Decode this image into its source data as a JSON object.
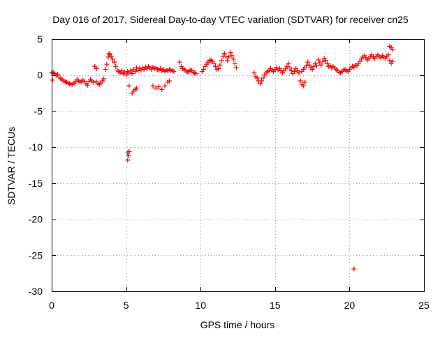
{
  "chart_data": {
    "type": "scatter",
    "title": "Day 016 of 2017, Sidereal Day-to-day VTEC variation (SDTVAR) for receiver cn25",
    "xlabel": "GPS time / hours",
    "ylabel": "SDTVAR / TECUs",
    "xlim": [
      0,
      25
    ],
    "ylim": [
      -30,
      5
    ],
    "xticks": [
      0,
      5,
      10,
      15,
      20,
      25
    ],
    "yticks": [
      5,
      0,
      -5,
      -10,
      -15,
      -20,
      -25,
      -30
    ],
    "grid": true,
    "marker": "+",
    "color": "#ff0000",
    "series": [
      {
        "name": "SDTVAR",
        "points": [
          [
            0.0,
            0.3
          ],
          [
            0.05,
            -0.7
          ],
          [
            0.1,
            0.4
          ],
          [
            0.2,
            0.2
          ],
          [
            0.3,
            0.0
          ],
          [
            0.4,
            0.1
          ],
          [
            0.5,
            -0.3
          ],
          [
            0.6,
            -0.5
          ],
          [
            0.7,
            -0.6
          ],
          [
            0.8,
            -0.8
          ],
          [
            0.9,
            -0.9
          ],
          [
            1.0,
            -1.0
          ],
          [
            1.1,
            -1.1
          ],
          [
            1.2,
            -1.2
          ],
          [
            1.3,
            -1.3
          ],
          [
            1.4,
            -1.3
          ],
          [
            1.5,
            -1.1
          ],
          [
            1.6,
            -0.9
          ],
          [
            1.7,
            -0.6
          ],
          [
            1.8,
            -0.8
          ],
          [
            1.9,
            -1.0
          ],
          [
            2.0,
            -0.9
          ],
          [
            2.1,
            -0.7
          ],
          [
            2.2,
            -0.9
          ],
          [
            2.3,
            -1.2
          ],
          [
            2.4,
            -1.4
          ],
          [
            2.5,
            -0.9
          ],
          [
            2.6,
            -0.6
          ],
          [
            2.7,
            -0.8
          ],
          [
            2.8,
            -1.0
          ],
          [
            2.9,
            1.2
          ],
          [
            3.0,
            0.9
          ],
          [
            3.0,
            -0.9
          ],
          [
            3.1,
            -1.2
          ],
          [
            3.2,
            -1.3
          ],
          [
            3.3,
            -1.1
          ],
          [
            3.4,
            -0.8
          ],
          [
            3.5,
            -0.5
          ],
          [
            3.6,
            0.8
          ],
          [
            3.7,
            1.5
          ],
          [
            3.8,
            2.5
          ],
          [
            3.85,
            3.0
          ],
          [
            3.9,
            2.8
          ],
          [
            4.0,
            2.6
          ],
          [
            4.1,
            2.2
          ],
          [
            4.2,
            1.8
          ],
          [
            4.3,
            1.2
          ],
          [
            4.4,
            0.7
          ],
          [
            4.5,
            0.5
          ],
          [
            4.6,
            0.3
          ],
          [
            4.7,
            0.6
          ],
          [
            4.8,
            0.2
          ],
          [
            4.9,
            0.4
          ],
          [
            5.0,
            0.1
          ],
          [
            5.1,
            0.5
          ],
          [
            5.2,
            0.3
          ],
          [
            5.3,
            0.6
          ],
          [
            5.4,
            0.2
          ],
          [
            5.5,
            0.8
          ],
          [
            5.6,
            0.5
          ],
          [
            5.7,
            1.0
          ],
          [
            5.8,
            0.6
          ],
          [
            5.9,
            0.9
          ],
          [
            6.0,
            0.7
          ],
          [
            6.1,
            1.0
          ],
          [
            6.2,
            0.8
          ],
          [
            6.3,
            1.1
          ],
          [
            6.4,
            0.9
          ],
          [
            6.5,
            1.2
          ],
          [
            6.6,
            1.0
          ],
          [
            6.7,
            0.8
          ],
          [
            6.8,
            1.1
          ],
          [
            6.9,
            0.9
          ],
          [
            7.0,
            1.0
          ],
          [
            7.1,
            0.8
          ],
          [
            7.2,
            0.7
          ],
          [
            7.3,
            0.9
          ],
          [
            7.4,
            0.6
          ],
          [
            7.5,
            0.8
          ],
          [
            7.6,
            0.5
          ],
          [
            7.7,
            0.7
          ],
          [
            7.8,
            0.6
          ],
          [
            7.9,
            0.8
          ],
          [
            8.0,
            0.7
          ],
          [
            8.1,
            0.6
          ],
          [
            8.2,
            0.5
          ],
          [
            5.2,
            -1.5
          ],
          [
            5.4,
            -2.5
          ],
          [
            5.5,
            -2.2
          ],
          [
            5.6,
            -2.0
          ],
          [
            5.7,
            -1.8
          ],
          [
            6.8,
            -1.5
          ],
          [
            7.0,
            -1.8
          ],
          [
            7.2,
            -1.6
          ],
          [
            7.4,
            -2.0
          ],
          [
            7.6,
            -1.5
          ],
          [
            7.8,
            -1.0
          ],
          [
            7.9,
            -0.8
          ],
          [
            5.1,
            -10.8
          ],
          [
            5.15,
            -11.2
          ],
          [
            5.2,
            -10.6
          ],
          [
            5.1,
            -11.8
          ],
          [
            8.6,
            1.8
          ],
          [
            8.7,
            1.2
          ],
          [
            8.8,
            0.9
          ],
          [
            8.9,
            0.8
          ],
          [
            9.0,
            0.6
          ],
          [
            9.1,
            0.4
          ],
          [
            9.2,
            0.5
          ],
          [
            9.3,
            0.7
          ],
          [
            9.4,
            0.6
          ],
          [
            9.5,
            0.4
          ],
          [
            9.6,
            0.3
          ],
          [
            9.7,
            0.2
          ],
          [
            10.1,
            0.5
          ],
          [
            10.2,
            0.8
          ],
          [
            10.3,
            1.2
          ],
          [
            10.4,
            1.5
          ],
          [
            10.5,
            1.8
          ],
          [
            10.6,
            2.0
          ],
          [
            10.7,
            2.1
          ],
          [
            10.8,
            1.9
          ],
          [
            10.9,
            1.6
          ],
          [
            11.0,
            1.2
          ],
          [
            11.1,
            0.8
          ],
          [
            11.2,
            0.9
          ],
          [
            11.3,
            1.4
          ],
          [
            11.4,
            2.0
          ],
          [
            11.5,
            2.6
          ],
          [
            11.6,
            3.0
          ],
          [
            11.7,
            2.6
          ],
          [
            11.8,
            2.0
          ],
          [
            11.9,
            2.5
          ],
          [
            12.0,
            3.1
          ],
          [
            12.1,
            2.7
          ],
          [
            12.2,
            2.2
          ],
          [
            12.3,
            1.6
          ],
          [
            12.4,
            1.0
          ],
          [
            13.6,
            0.3
          ],
          [
            13.7,
            -0.2
          ],
          [
            13.8,
            -0.4
          ],
          [
            13.9,
            -0.8
          ],
          [
            14.0,
            -1.2
          ],
          [
            14.1,
            -0.8
          ],
          [
            14.2,
            -0.4
          ],
          [
            14.3,
            0.0
          ],
          [
            14.4,
            0.3
          ],
          [
            14.5,
            0.5
          ],
          [
            14.6,
            0.6
          ],
          [
            14.7,
            0.9
          ],
          [
            14.8,
            0.7
          ],
          [
            14.9,
            0.5
          ],
          [
            15.0,
            0.8
          ],
          [
            15.1,
            1.0
          ],
          [
            15.2,
            0.7
          ],
          [
            15.3,
            0.9
          ],
          [
            15.4,
            0.6
          ],
          [
            15.5,
            0.3
          ],
          [
            15.6,
            0.6
          ],
          [
            15.7,
            0.9
          ],
          [
            15.8,
            1.2
          ],
          [
            15.9,
            1.6
          ],
          [
            16.0,
            1.0
          ],
          [
            16.1,
            0.6
          ],
          [
            16.2,
            0.2
          ],
          [
            16.3,
            0.5
          ],
          [
            16.4,
            0.9
          ],
          [
            16.5,
            0.6
          ],
          [
            16.6,
            0.3
          ],
          [
            16.7,
            -0.8
          ],
          [
            16.8,
            -1.3
          ],
          [
            16.9,
            -1.5
          ],
          [
            17.0,
            -1.0
          ],
          [
            16.8,
            0.5
          ],
          [
            16.9,
            0.8
          ],
          [
            17.0,
            1.0
          ],
          [
            17.1,
            1.3
          ],
          [
            17.2,
            1.8
          ],
          [
            17.3,
            1.4
          ],
          [
            17.4,
            1.0
          ],
          [
            17.5,
            0.8
          ],
          [
            17.6,
            1.2
          ],
          [
            17.7,
            1.6
          ],
          [
            17.8,
            1.3
          ],
          [
            17.9,
            2.1
          ],
          [
            18.0,
            1.7
          ],
          [
            18.1,
            1.4
          ],
          [
            18.2,
            1.9
          ],
          [
            18.3,
            2.3
          ],
          [
            18.4,
            2.0
          ],
          [
            18.5,
            1.6
          ],
          [
            18.6,
            1.2
          ],
          [
            18.7,
            1.3
          ],
          [
            18.8,
            1.0
          ],
          [
            18.9,
            1.2
          ],
          [
            19.0,
            1.0
          ],
          [
            19.1,
            0.8
          ],
          [
            19.2,
            0.6
          ],
          [
            19.3,
            0.4
          ],
          [
            19.4,
            0.3
          ],
          [
            19.5,
            0.5
          ],
          [
            19.6,
            0.7
          ],
          [
            19.7,
            0.8
          ],
          [
            19.8,
            0.6
          ],
          [
            19.9,
            0.5
          ],
          [
            20.0,
            0.8
          ],
          [
            20.1,
            1.0
          ],
          [
            20.2,
            1.2
          ],
          [
            20.3,
            1.1
          ],
          [
            20.4,
            1.4
          ],
          [
            20.5,
            1.3
          ],
          [
            20.6,
            1.6
          ],
          [
            20.7,
            1.9
          ],
          [
            20.8,
            2.2
          ],
          [
            20.9,
            2.5
          ],
          [
            21.0,
            2.7
          ],
          [
            21.1,
            2.4
          ],
          [
            21.2,
            2.1
          ],
          [
            21.3,
            2.3
          ],
          [
            21.4,
            2.6
          ],
          [
            21.5,
            2.8
          ],
          [
            21.6,
            2.5
          ],
          [
            21.7,
            2.3
          ],
          [
            21.8,
            2.6
          ],
          [
            21.9,
            2.8
          ],
          [
            22.0,
            2.6
          ],
          [
            22.1,
            2.4
          ],
          [
            22.2,
            2.7
          ],
          [
            22.3,
            2.5
          ],
          [
            22.4,
            2.3
          ],
          [
            22.5,
            2.6
          ],
          [
            22.6,
            2.8
          ],
          [
            22.7,
            4.0
          ],
          [
            22.8,
            3.8
          ],
          [
            22.9,
            3.5
          ],
          [
            22.7,
            2.0
          ],
          [
            22.8,
            1.6
          ],
          [
            22.9,
            1.9
          ],
          [
            20.3,
            -26.9
          ]
        ]
      }
    ]
  }
}
